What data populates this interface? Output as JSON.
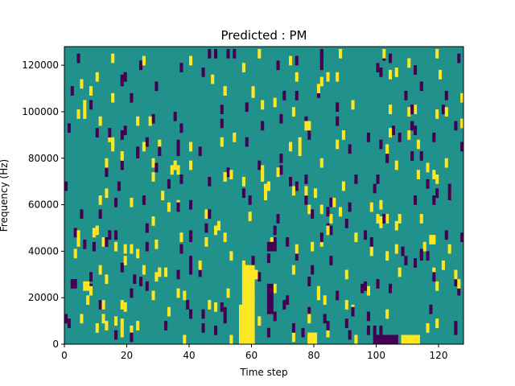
{
  "chart_data": {
    "type": "heatmap",
    "title": "Predicted : PM",
    "xlabel": "Time step",
    "ylabel": "Frequency (Hz)",
    "xlim": [
      0,
      128
    ],
    "ylim": [
      0,
      128000
    ],
    "xticks": [
      "0",
      "20",
      "40",
      "60",
      "80",
      "100",
      "120"
    ],
    "yticks": [
      "0",
      "20000",
      "40000",
      "60000",
      "80000",
      "100000",
      "120000"
    ],
    "grid": false,
    "colormap": {
      "background": "#21918c",
      "low": "#440154",
      "high": "#fde725"
    },
    "note_cells": {
      "high": [
        [
          56,
          0,
          5,
          17
        ],
        [
          57,
          17,
          4,
          17
        ],
        [
          108,
          0,
          6,
          4
        ],
        [
          78,
          0,
          3,
          5
        ]
      ],
      "low": [
        [
          99,
          0,
          8,
          4
        ],
        [
          65,
          13,
          2,
          13
        ],
        [
          65,
          40,
          3,
          4
        ]
      ]
    }
  }
}
